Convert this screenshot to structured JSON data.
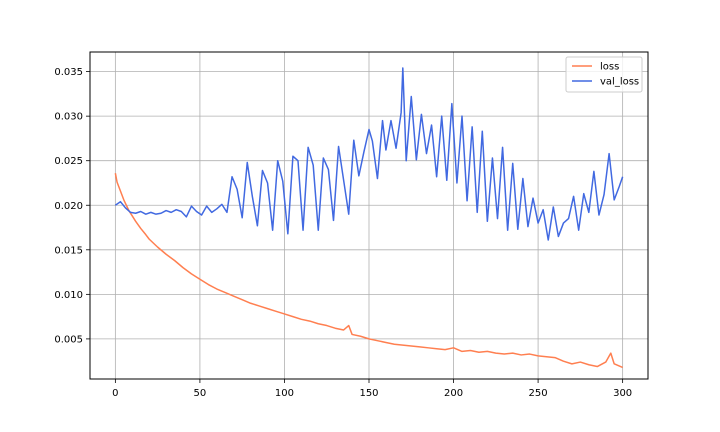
{
  "chart_data": {
    "type": "line",
    "title": "",
    "xlabel": "",
    "ylabel": "",
    "xlim": [
      -15,
      315
    ],
    "ylim": [
      0.0005,
      0.0372
    ],
    "grid": true,
    "legend_position": "top-right",
    "x_ticks": [
      0,
      50,
      100,
      150,
      200,
      250,
      300
    ],
    "x_tick_labels": [
      "0",
      "50",
      "100",
      "150",
      "200",
      "250",
      "300"
    ],
    "y_ticks": [
      0.005,
      0.01,
      0.015,
      0.02,
      0.025,
      0.03,
      0.035
    ],
    "y_tick_labels": [
      "0.005",
      "0.010",
      "0.015",
      "0.020",
      "0.025",
      "0.030",
      "0.035"
    ],
    "series": [
      {
        "name": "loss",
        "color": "#FF7F50",
        "x": [
          0,
          1,
          3,
          5,
          8,
          10,
          12,
          15,
          18,
          20,
          25,
          30,
          35,
          40,
          45,
          50,
          55,
          60,
          65,
          70,
          75,
          80,
          85,
          90,
          95,
          100,
          105,
          110,
          115,
          120,
          125,
          130,
          135,
          138,
          140,
          145,
          150,
          155,
          160,
          165,
          170,
          175,
          180,
          185,
          190,
          195,
          200,
          205,
          210,
          215,
          220,
          225,
          230,
          235,
          240,
          245,
          250,
          255,
          260,
          265,
          270,
          275,
          280,
          285,
          290,
          293,
          295,
          300
        ],
        "values": [
          0.0236,
          0.0226,
          0.0216,
          0.0206,
          0.0194,
          0.0188,
          0.0182,
          0.0174,
          0.0167,
          0.0162,
          0.0153,
          0.0145,
          0.0138,
          0.013,
          0.0123,
          0.0117,
          0.0111,
          0.0106,
          0.0102,
          0.0098,
          0.0094,
          0.009,
          0.0087,
          0.0084,
          0.0081,
          0.0078,
          0.0075,
          0.0072,
          0.007,
          0.0067,
          0.0065,
          0.0062,
          0.006,
          0.0065,
          0.0055,
          0.0053,
          0.005,
          0.0048,
          0.0046,
          0.0044,
          0.0043,
          0.0042,
          0.0041,
          0.004,
          0.0039,
          0.0038,
          0.004,
          0.0036,
          0.0037,
          0.0035,
          0.0036,
          0.0034,
          0.0033,
          0.0034,
          0.0032,
          0.0033,
          0.0031,
          0.003,
          0.0029,
          0.0025,
          0.0022,
          0.0024,
          0.0021,
          0.0019,
          0.0024,
          0.0034,
          0.0022,
          0.0018
        ]
      },
      {
        "name": "val_loss",
        "color": "#4169E1",
        "x": [
          0,
          3,
          6,
          9,
          12,
          15,
          18,
          21,
          24,
          27,
          30,
          33,
          36,
          39,
          42,
          45,
          48,
          51,
          54,
          57,
          60,
          63,
          66,
          69,
          72,
          75,
          78,
          81,
          84,
          87,
          90,
          93,
          96,
          99,
          102,
          105,
          108,
          111,
          114,
          117,
          120,
          123,
          126,
          129,
          132,
          135,
          138,
          141,
          144,
          147,
          150,
          152,
          155,
          158,
          160,
          163,
          166,
          169,
          170,
          172,
          175,
          178,
          181,
          184,
          187,
          190,
          193,
          196,
          199,
          202,
          205,
          208,
          211,
          214,
          217,
          220,
          223,
          226,
          229,
          232,
          235,
          238,
          241,
          244,
          247,
          250,
          253,
          256,
          259,
          262,
          265,
          268,
          271,
          274,
          277,
          280,
          283,
          286,
          289,
          292,
          295,
          298,
          300
        ],
        "values": [
          0.02,
          0.0204,
          0.0197,
          0.0192,
          0.0191,
          0.0193,
          0.019,
          0.0192,
          0.019,
          0.0191,
          0.0194,
          0.0192,
          0.0195,
          0.0193,
          0.0187,
          0.0199,
          0.0193,
          0.0189,
          0.0199,
          0.0192,
          0.0196,
          0.0201,
          0.0192,
          0.0232,
          0.0218,
          0.0186,
          0.0248,
          0.021,
          0.0177,
          0.0239,
          0.0225,
          0.0172,
          0.025,
          0.0227,
          0.0168,
          0.0255,
          0.025,
          0.0172,
          0.0265,
          0.0245,
          0.0172,
          0.0253,
          0.024,
          0.0183,
          0.0266,
          0.0228,
          0.019,
          0.0273,
          0.0233,
          0.026,
          0.0285,
          0.0272,
          0.023,
          0.0295,
          0.0262,
          0.0295,
          0.0264,
          0.0304,
          0.0354,
          0.025,
          0.0322,
          0.0251,
          0.0302,
          0.0258,
          0.029,
          0.0232,
          0.03,
          0.0228,
          0.0314,
          0.0225,
          0.03,
          0.0205,
          0.0288,
          0.0192,
          0.0283,
          0.0182,
          0.0253,
          0.0185,
          0.0265,
          0.0172,
          0.0247,
          0.0173,
          0.023,
          0.0176,
          0.0208,
          0.018,
          0.0195,
          0.0161,
          0.0198,
          0.0165,
          0.018,
          0.0185,
          0.021,
          0.0172,
          0.0213,
          0.0192,
          0.0238,
          0.0189,
          0.0212,
          0.0258,
          0.0206,
          0.0221,
          0.0232
        ]
      }
    ]
  }
}
